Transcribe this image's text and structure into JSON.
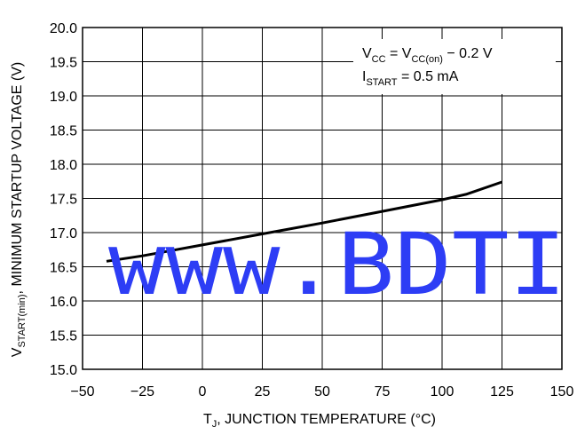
{
  "chart_data": {
    "type": "line",
    "x": [
      -40,
      -25,
      0,
      25,
      50,
      75,
      100,
      110,
      125
    ],
    "series": [
      {
        "values": [
          16.58,
          16.66,
          16.82,
          16.98,
          17.14,
          17.31,
          17.48,
          17.56,
          17.74
        ]
      }
    ],
    "xlim": [
      -50,
      150
    ],
    "ylim": [
      15.0,
      20.0
    ],
    "xticks": [
      "−50",
      "−25",
      "0",
      "25",
      "50",
      "75",
      "100",
      "125",
      "150"
    ],
    "yticks": [
      "15.0",
      "15.5",
      "16.0",
      "16.5",
      "17.0",
      "17.5",
      "18.0",
      "18.5",
      "19.0",
      "19.5",
      "20.0"
    ],
    "xlabel": {
      "main": "T",
      "sub": "J",
      "rest": ", JUNCTION TEMPERATURE (°C)"
    },
    "ylabel": {
      "main": "V",
      "sub": "START(min)",
      "rest": ", MINIMUM STARTUP VOLTAGE (V)"
    },
    "annotation": {
      "line1": {
        "v1": "V",
        "v1_sub": "CC",
        "eq": " = V",
        "v2_sub": "CC(on)",
        "rest": " − 0.2 V"
      },
      "line2": {
        "i": "I",
        "i_sub": "START",
        "rest": " = 0.5 mA"
      }
    },
    "grid": true,
    "line_color": "#000000"
  },
  "watermark": {
    "text": "www.BDTI",
    "color": "#2d3df5"
  }
}
